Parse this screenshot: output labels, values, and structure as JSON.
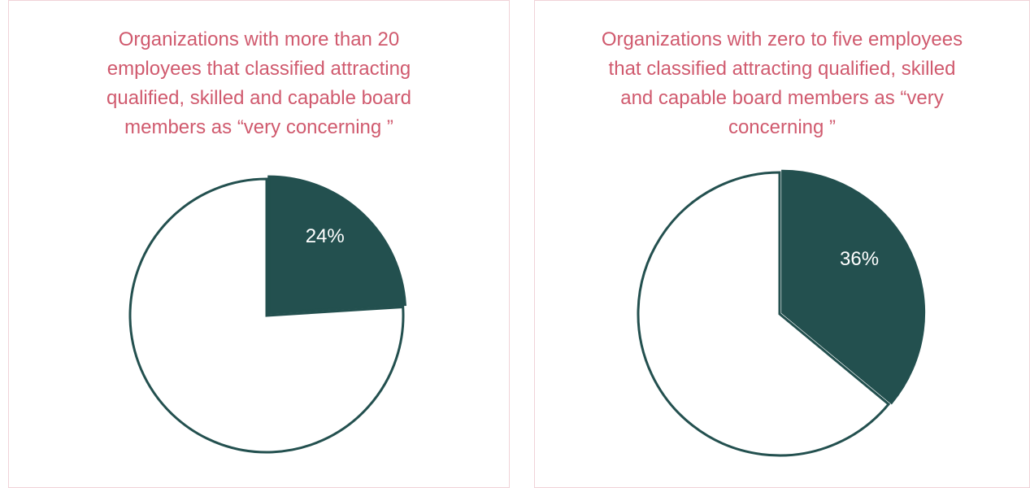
{
  "chart_data": [
    {
      "type": "pie",
      "title": "Organizations with more than 20 employees that classified attracting qualified, skilled and capable board members as “very concerning ”",
      "values": [
        24,
        76
      ],
      "value_labels": [
        "24%",
        null
      ],
      "colors": [
        "#23504f",
        "#ffffff"
      ],
      "edge_color": "#23504f",
      "title_color": "#d05a6e"
    },
    {
      "type": "pie",
      "title": "Organizations with zero to five employees that classified attracting qualified, skilled and capable board members as “very concerning ”",
      "values": [
        36,
        64
      ],
      "value_labels": [
        "36%",
        null
      ],
      "colors": [
        "#23504f",
        "#ffffff"
      ],
      "edge_color": "#23504f",
      "title_color": "#d05a6e"
    }
  ]
}
